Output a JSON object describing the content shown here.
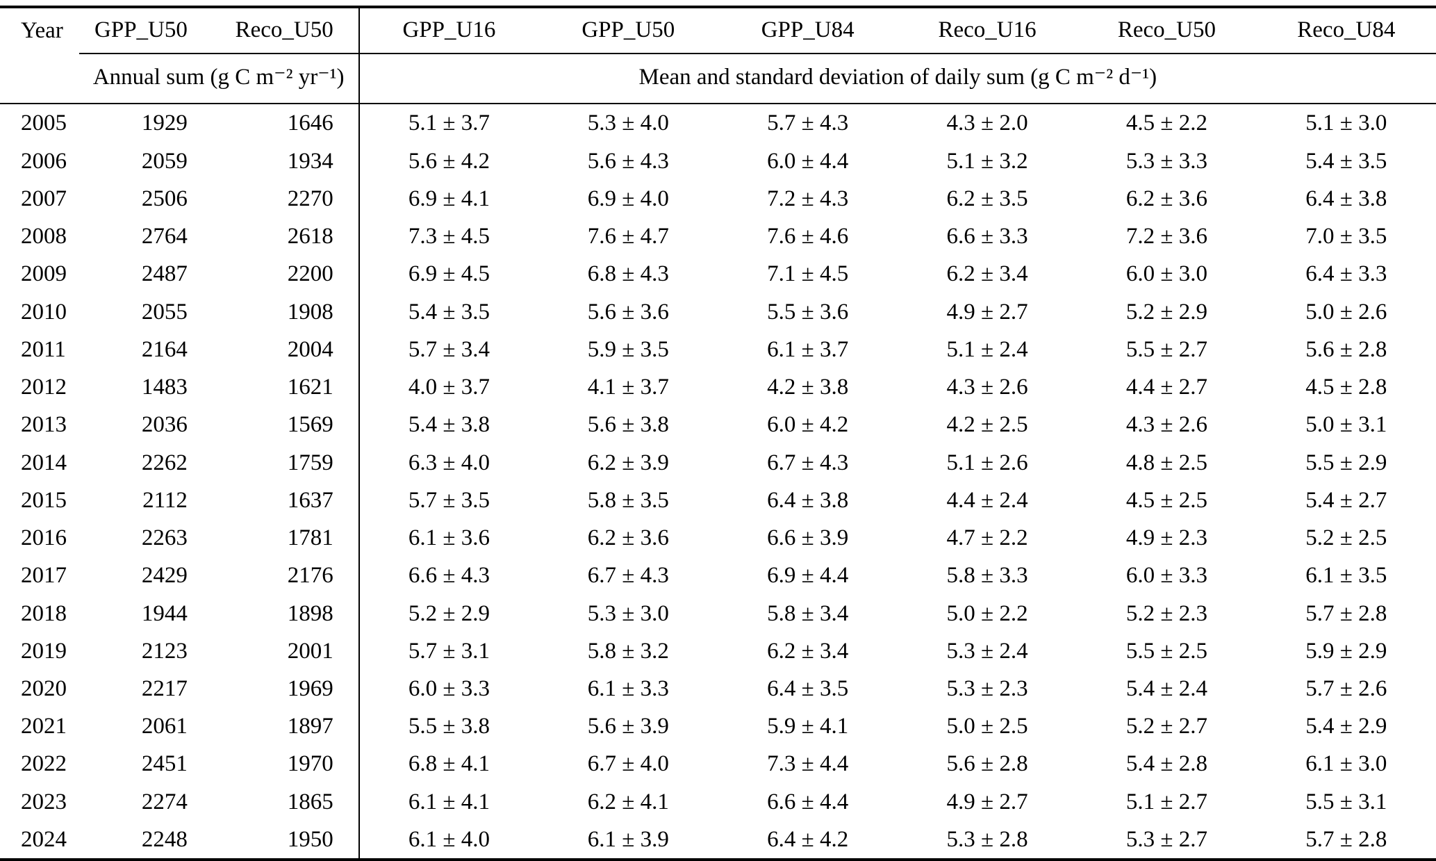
{
  "colors": {
    "background": "#ffffff",
    "text": "#000000",
    "rule": "#000000"
  },
  "table": {
    "header_row1": [
      "Year",
      "GPP_U50",
      "Reco_U50",
      "GPP_U16",
      "GPP_U50",
      "GPP_U84",
      "Reco_U16",
      "Reco_U50",
      "Reco_U84"
    ],
    "units": {
      "annual": "Annual sum (g C m⁻² yr⁻¹)",
      "daily": "Mean and standard deviation of daily sum (g C m⁻² d⁻¹)"
    },
    "rows": [
      [
        "2005",
        "1929",
        "1646",
        "5.1 ± 3.7",
        "5.3 ± 4.0",
        "5.7 ± 4.3",
        "4.3 ± 2.0",
        "4.5 ± 2.2",
        "5.1 ± 3.0"
      ],
      [
        "2006",
        "2059",
        "1934",
        "5.6 ± 4.2",
        "5.6 ± 4.3",
        "6.0 ± 4.4",
        "5.1 ± 3.2",
        "5.3 ± 3.3",
        "5.4 ± 3.5"
      ],
      [
        "2007",
        "2506",
        "2270",
        "6.9 ± 4.1",
        "6.9 ± 4.0",
        "7.2 ± 4.3",
        "6.2 ± 3.5",
        "6.2 ± 3.6",
        "6.4 ± 3.8"
      ],
      [
        "2008",
        "2764",
        "2618",
        "7.3 ± 4.5",
        "7.6 ± 4.7",
        "7.6 ± 4.6",
        "6.6 ± 3.3",
        "7.2 ± 3.6",
        "7.0 ± 3.5"
      ],
      [
        "2009",
        "2487",
        "2200",
        "6.9 ± 4.5",
        "6.8 ± 4.3",
        "7.1 ± 4.5",
        "6.2 ± 3.4",
        "6.0 ± 3.0",
        "6.4 ± 3.3"
      ],
      [
        "2010",
        "2055",
        "1908",
        "5.4 ± 3.5",
        "5.6 ± 3.6",
        "5.5 ± 3.6",
        "4.9 ± 2.7",
        "5.2 ± 2.9",
        "5.0 ± 2.6"
      ],
      [
        "2011",
        "2164",
        "2004",
        "5.7 ± 3.4",
        "5.9 ± 3.5",
        "6.1 ± 3.7",
        "5.1 ± 2.4",
        "5.5 ± 2.7",
        "5.6 ± 2.8"
      ],
      [
        "2012",
        "1483",
        "1621",
        "4.0 ± 3.7",
        "4.1 ± 3.7",
        "4.2 ± 3.8",
        "4.3 ± 2.6",
        "4.4 ± 2.7",
        "4.5 ± 2.8"
      ],
      [
        "2013",
        "2036",
        "1569",
        "5.4 ± 3.8",
        "5.6 ± 3.8",
        "6.0 ± 4.2",
        "4.2 ± 2.5",
        "4.3 ± 2.6",
        "5.0 ± 3.1"
      ],
      [
        "2014",
        "2262",
        "1759",
        "6.3 ± 4.0",
        "6.2 ± 3.9",
        "6.7 ± 4.3",
        "5.1 ± 2.6",
        "4.8 ± 2.5",
        "5.5 ± 2.9"
      ],
      [
        "2015",
        "2112",
        "1637",
        "5.7 ± 3.5",
        "5.8 ± 3.5",
        "6.4 ± 3.8",
        "4.4 ± 2.4",
        "4.5 ± 2.5",
        "5.4 ± 2.7"
      ],
      [
        "2016",
        "2263",
        "1781",
        "6.1 ± 3.6",
        "6.2 ± 3.6",
        "6.6 ± 3.9",
        "4.7 ± 2.2",
        "4.9 ± 2.3",
        "5.2 ± 2.5"
      ],
      [
        "2017",
        "2429",
        "2176",
        "6.6 ± 4.3",
        "6.7 ± 4.3",
        "6.9 ± 4.4",
        "5.8 ± 3.3",
        "6.0 ± 3.3",
        "6.1 ± 3.5"
      ],
      [
        "2018",
        "1944",
        "1898",
        "5.2 ± 2.9",
        "5.3 ± 3.0",
        "5.8 ± 3.4",
        "5.0 ± 2.2",
        "5.2 ± 2.3",
        "5.7 ± 2.8"
      ],
      [
        "2019",
        "2123",
        "2001",
        "5.7 ± 3.1",
        "5.8 ± 3.2",
        "6.2 ± 3.4",
        "5.3 ± 2.4",
        "5.5 ± 2.5",
        "5.9 ± 2.9"
      ],
      [
        "2020",
        "2217",
        "1969",
        "6.0 ± 3.3",
        "6.1 ± 3.3",
        "6.4 ± 3.5",
        "5.3 ± 2.3",
        "5.4 ± 2.4",
        "5.7 ± 2.6"
      ],
      [
        "2021",
        "2061",
        "1897",
        "5.5 ± 3.8",
        "5.6 ± 3.9",
        "5.9 ± 4.1",
        "5.0 ± 2.5",
        "5.2 ± 2.7",
        "5.4 ± 2.9"
      ],
      [
        "2022",
        "2451",
        "1970",
        "6.8 ± 4.1",
        "6.7 ± 4.0",
        "7.3 ± 4.4",
        "5.6 ± 2.8",
        "5.4 ± 2.8",
        "6.1 ± 3.0"
      ],
      [
        "2023",
        "2274",
        "1865",
        "6.1 ± 4.1",
        "6.2 ± 4.1",
        "6.6 ± 4.4",
        "4.9 ± 2.7",
        "5.1 ± 2.7",
        "5.5 ± 3.1"
      ],
      [
        "2024",
        "2248",
        "1950",
        "6.1 ± 4.0",
        "6.1 ± 3.9",
        "6.4 ± 4.2",
        "5.3 ± 2.8",
        "5.3 ± 2.7",
        "5.7 ± 2.8"
      ]
    ]
  }
}
